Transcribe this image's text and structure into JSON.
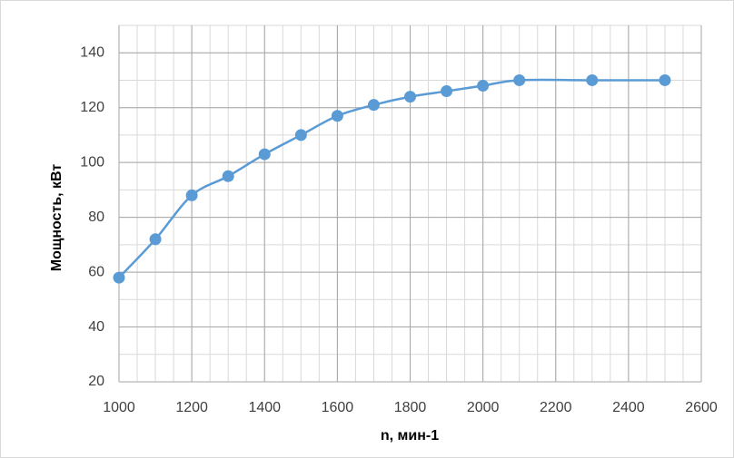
{
  "chart_data": {
    "type": "line",
    "x_label": "n, мин-1",
    "y_label": "Мощность,  кВт",
    "x": [
      1000,
      1100,
      1200,
      1300,
      1400,
      1500,
      1600,
      1700,
      1800,
      1900,
      2000,
      2100,
      2300,
      2500
    ],
    "series": [
      {
        "name": "Мощность",
        "color": "#5b9bd5",
        "values": [
          58,
          72,
          88,
          95,
          103,
          110,
          117,
          121,
          124,
          126,
          128,
          130,
          130,
          130
        ]
      }
    ],
    "xlim": [
      1000,
      2600
    ],
    "xticks": [
      1000,
      1200,
      1400,
      1600,
      1800,
      2000,
      2200,
      2400,
      2600
    ],
    "ylim": [
      20,
      150
    ],
    "yticks": [
      20,
      40,
      60,
      80,
      100,
      120,
      140
    ],
    "grid": true,
    "smooth": true
  }
}
